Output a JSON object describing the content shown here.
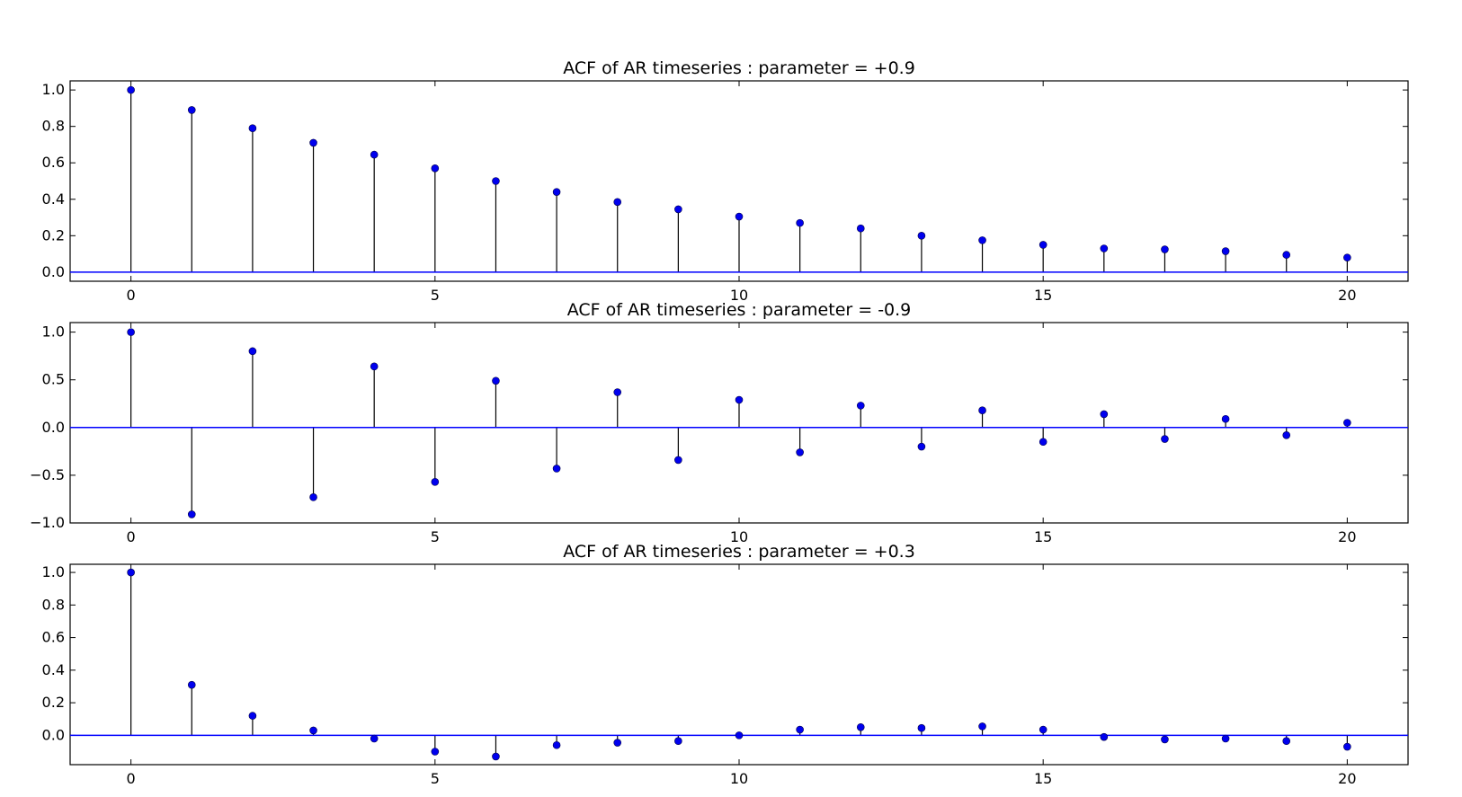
{
  "chart_data": [
    {
      "type": "stem",
      "title": "ACF of AR timeseries : parameter = +0.9",
      "xlim": [
        -1,
        21
      ],
      "ylim": [
        -0.05,
        1.05
      ],
      "xticks": [
        0,
        5,
        10,
        15,
        20
      ],
      "xtick_labels": [
        "0",
        "5",
        "10",
        "15",
        "20"
      ],
      "yticks": [
        0.0,
        0.2,
        0.4,
        0.6,
        0.8,
        1.0
      ],
      "ytick_labels": [
        "0.0",
        "0.2",
        "0.4",
        "0.6",
        "0.8",
        "1.0"
      ],
      "x": [
        0,
        1,
        2,
        3,
        4,
        5,
        6,
        7,
        8,
        9,
        10,
        11,
        12,
        13,
        14,
        15,
        16,
        17,
        18,
        19,
        20
      ],
      "y": [
        1.0,
        0.89,
        0.79,
        0.71,
        0.645,
        0.57,
        0.5,
        0.44,
        0.385,
        0.345,
        0.305,
        0.27,
        0.24,
        0.2,
        0.175,
        0.15,
        0.13,
        0.125,
        0.115,
        0.095,
        0.08
      ]
    },
    {
      "type": "stem",
      "title": "ACF of AR timeseries : parameter = -0.9",
      "xlim": [
        -1,
        21
      ],
      "ylim": [
        -1.0,
        1.1
      ],
      "xticks": [
        0,
        5,
        10,
        15,
        20
      ],
      "xtick_labels": [
        "0",
        "5",
        "10",
        "15",
        "20"
      ],
      "yticks": [
        -1.0,
        -0.5,
        0.0,
        0.5,
        1.0
      ],
      "ytick_labels": [
        "−1.0",
        "−0.5",
        "0.0",
        "0.5",
        "1.0"
      ],
      "x": [
        0,
        1,
        2,
        3,
        4,
        5,
        6,
        7,
        8,
        9,
        10,
        11,
        12,
        13,
        14,
        15,
        16,
        17,
        18,
        19,
        20
      ],
      "y": [
        1.0,
        -0.91,
        0.8,
        -0.73,
        0.64,
        -0.57,
        0.49,
        -0.43,
        0.37,
        -0.34,
        0.29,
        -0.26,
        0.23,
        -0.2,
        0.18,
        -0.15,
        0.14,
        -0.12,
        0.09,
        -0.08,
        0.05
      ]
    },
    {
      "type": "stem",
      "title": "ACF of AR timeseries : parameter = +0.3",
      "xlim": [
        -1,
        21
      ],
      "ylim": [
        -0.18,
        1.05
      ],
      "xticks": [
        0,
        5,
        10,
        15,
        20
      ],
      "xtick_labels": [
        "0",
        "5",
        "10",
        "15",
        "20"
      ],
      "yticks": [
        0.0,
        0.2,
        0.4,
        0.6,
        0.8,
        1.0
      ],
      "ytick_labels": [
        "0.0",
        "0.2",
        "0.4",
        "0.6",
        "0.8",
        "1.0"
      ],
      "x": [
        0,
        1,
        2,
        3,
        4,
        5,
        6,
        7,
        8,
        9,
        10,
        11,
        12,
        13,
        14,
        15,
        16,
        17,
        18,
        19,
        20
      ],
      "y": [
        1.0,
        0.31,
        0.12,
        0.03,
        -0.02,
        -0.1,
        -0.13,
        -0.06,
        -0.045,
        -0.035,
        0.0,
        0.035,
        0.05,
        0.045,
        0.055,
        0.035,
        -0.01,
        -0.025,
        -0.02,
        -0.035,
        -0.07
      ]
    }
  ],
  "colors": {
    "marker": "#0000ee",
    "baseline": "#0000ff",
    "stem": "#000000",
    "axes": "#000000"
  }
}
